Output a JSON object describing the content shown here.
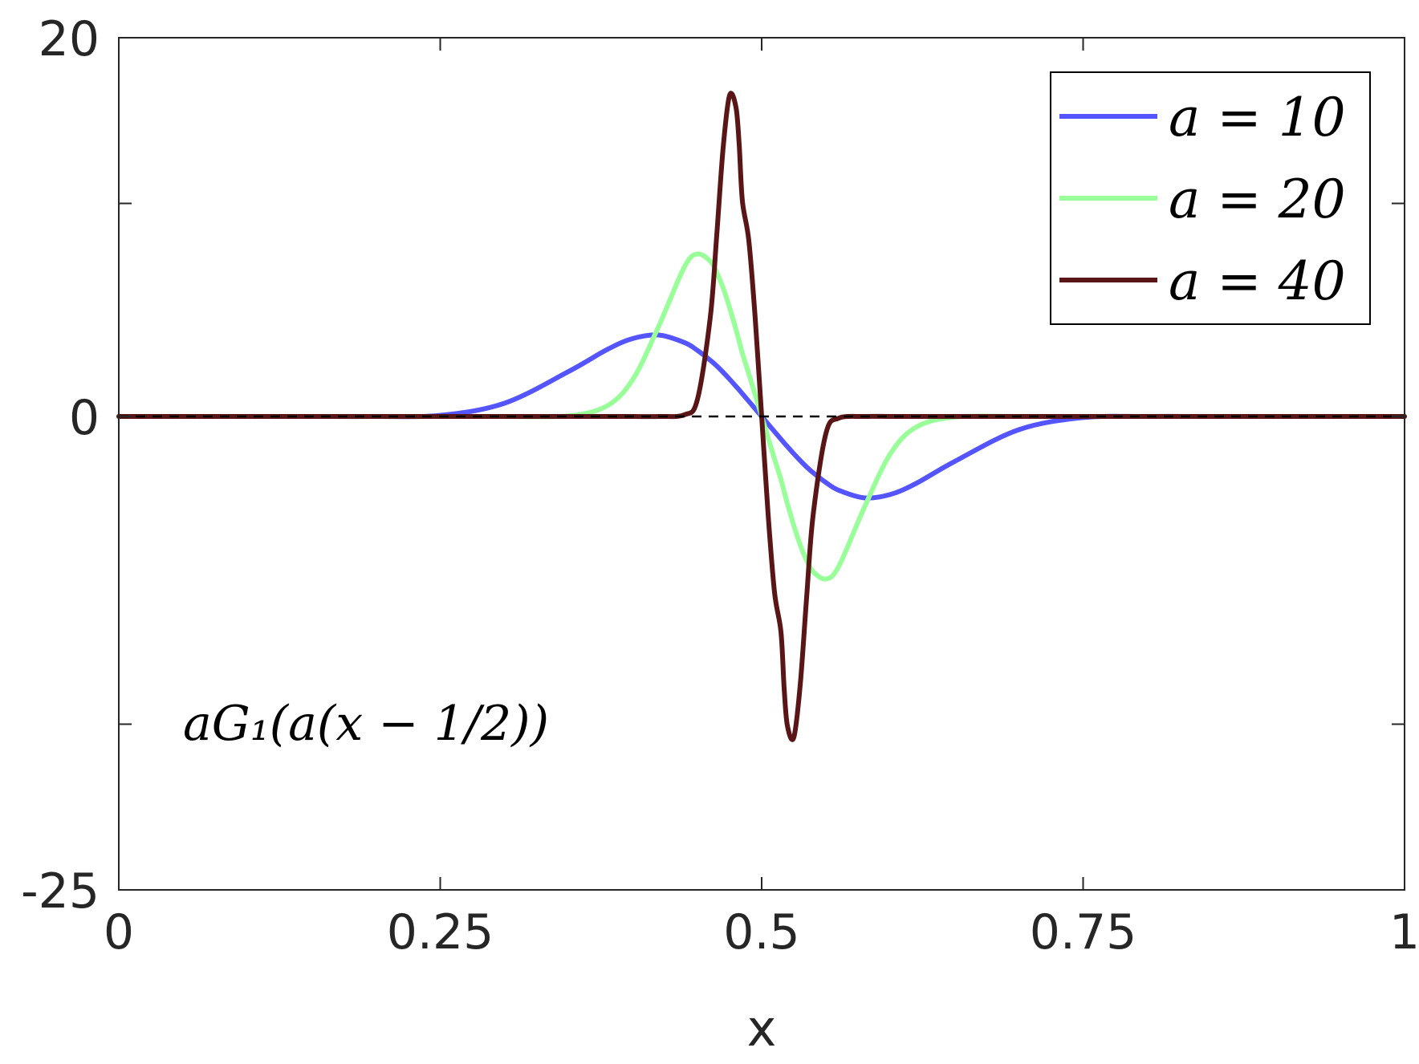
{
  "chart_data": {
    "type": "line",
    "title": "",
    "xlabel": "x",
    "ylabel": "",
    "xlim": [
      0,
      1
    ],
    "ylim": [
      -25,
      20
    ],
    "xticks": [
      0,
      0.25,
      0.5,
      0.75,
      1
    ],
    "xtick_labels": [
      "0",
      "0.25",
      "0.5",
      "0.75",
      "1"
    ],
    "yticks": [
      -25,
      0,
      20
    ],
    "ytick_labels": [
      "-25",
      "0",
      "20"
    ],
    "yminor_ticks": [
      -16.25,
      11.25
    ],
    "grid": false,
    "legend_position": "top-right",
    "annotation": "aG₁(a(x − 1/2))",
    "reference_line": {
      "y": 0,
      "style": "dashed",
      "color": "#000000"
    },
    "x": [
      0,
      0.05,
      0.1,
      0.15,
      0.2,
      0.25,
      0.3,
      0.35,
      0.38,
      0.4,
      0.42,
      0.44,
      0.45,
      0.46,
      0.465,
      0.47,
      0.475,
      0.48,
      0.4825,
      0.485,
      0.49,
      0.495,
      0.5,
      0.505,
      0.51,
      0.515,
      0.5175,
      0.52,
      0.525,
      0.53,
      0.535,
      0.54,
      0.55,
      0.56,
      0.58,
      0.6,
      0.62,
      0.65,
      0.7,
      0.75,
      0.8,
      0.85,
      0.9,
      0.95,
      1
    ],
    "series": [
      {
        "name": "a = 10",
        "color": "#5555ff",
        "values": [
          0,
          0,
          0,
          0,
          0,
          0.06,
          0.7,
          2.38,
          3.54,
          4.12,
          4.3,
          3.9,
          3.49,
          2.97,
          2.67,
          2.33,
          1.97,
          1.59,
          1.4,
          1.2,
          0.8,
          0.4,
          0,
          -0.4,
          -0.8,
          -1.2,
          -1.4,
          -1.59,
          -1.97,
          -2.33,
          -2.67,
          -2.97,
          -3.49,
          -3.9,
          -4.3,
          -4.12,
          -3.54,
          -2.38,
          -0.7,
          -0.06,
          0,
          0,
          0,
          0,
          0
        ]
      },
      {
        "name": "a = 20",
        "color": "#99ff99",
        "values": [
          0,
          0,
          0,
          0,
          0,
          0,
          0,
          0.03,
          0.57,
          1.98,
          4.78,
          7.91,
          8.58,
          8.2,
          7.61,
          6.79,
          5.76,
          4.6,
          3.97,
          3.33,
          2.25,
          1.13,
          0,
          -1.13,
          -2.25,
          -3.33,
          -3.97,
          -4.6,
          -5.76,
          -6.79,
          -7.61,
          -8.2,
          -8.58,
          -7.91,
          -4.78,
          -1.98,
          -0.57,
          -0.03,
          0,
          0,
          0,
          0,
          0,
          0,
          0
        ]
      },
      {
        "name": "a = 40",
        "color": "#5a1616",
        "values": [
          0,
          0,
          0,
          0,
          0,
          0,
          0,
          0,
          0,
          0,
          0,
          0.09,
          0.89,
          5.22,
          9.52,
          14.16,
          16.95,
          16.33,
          14.37,
          11.38,
          9.29,
          5.16,
          0,
          -5.16,
          -9.29,
          -11.38,
          -14.37,
          -16.33,
          -16.95,
          -14.16,
          -9.52,
          -5.22,
          -0.89,
          -0.09,
          0,
          0,
          0,
          0,
          0,
          0,
          0,
          0,
          0,
          0,
          0
        ]
      }
    ]
  }
}
